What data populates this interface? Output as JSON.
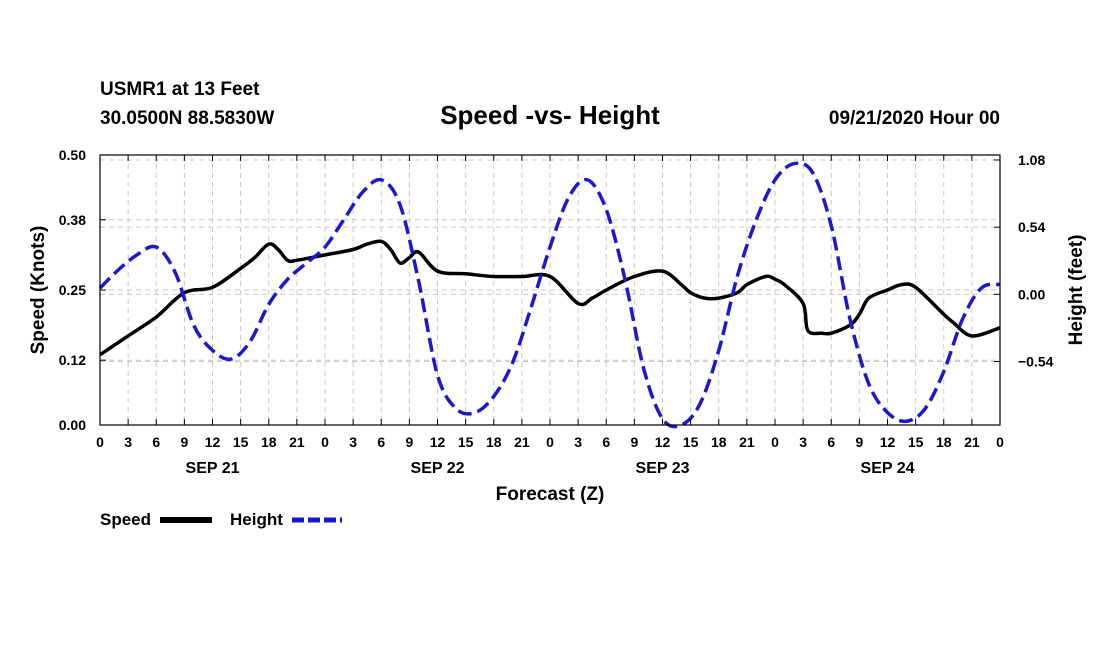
{
  "header": {
    "station": "USMR1 at 13 Feet",
    "location": "30.0500N 88.5830W",
    "title": "Speed -vs- Height",
    "issued": "09/21/2020 Hour 00"
  },
  "legend": {
    "speed_label": "Speed",
    "height_label": "Height"
  },
  "colors": {
    "speed": "#000000",
    "height": "#1a1acc"
  },
  "chart_data": {
    "type": "line",
    "title": "Speed -vs- Height",
    "xlabel": "Forecast (Z)",
    "ylabel": "Speed (Knots)",
    "y2label": "Height (feet)",
    "xlim": [
      0,
      96
    ],
    "ylim": [
      0,
      0.5
    ],
    "y2lim": [
      -1.05,
      1.12
    ],
    "x_ticks": [
      0,
      3,
      6,
      9,
      12,
      15,
      18,
      21,
      24,
      27,
      30,
      33,
      36,
      39,
      42,
      45,
      48,
      51,
      54,
      57,
      60,
      63,
      66,
      69,
      72,
      75,
      78,
      81,
      84,
      87,
      90,
      93,
      96
    ],
    "x_tick_labels": [
      "0",
      "3",
      "6",
      "9",
      "12",
      "15",
      "18",
      "21",
      "0",
      "3",
      "6",
      "9",
      "12",
      "15",
      "18",
      "21",
      "0",
      "3",
      "6",
      "9",
      "12",
      "15",
      "18",
      "21",
      "0",
      "3",
      "6",
      "9",
      "12",
      "15",
      "18",
      "21",
      "0"
    ],
    "y_ticks": [
      0.0,
      0.12,
      0.25,
      0.38,
      0.5
    ],
    "y_tick_labels": [
      "0.00",
      "0.12",
      "0.25",
      "0.38",
      "0.50"
    ],
    "y2_ticks": [
      1.08,
      0.54,
      0.0,
      -0.54
    ],
    "y2_tick_labels": [
      "1.08",
      "0.54",
      "0.00",
      "−0.54"
    ],
    "day_labels": [
      {
        "x": 12,
        "label": "SEP 21"
      },
      {
        "x": 36,
        "label": "SEP 22"
      },
      {
        "x": 60,
        "label": "SEP 23"
      },
      {
        "x": 84,
        "label": "SEP 24"
      }
    ],
    "grid": true,
    "series": [
      {
        "name": "Speed",
        "axis": "left",
        "style": "solid",
        "x": [
          0,
          3,
          6,
          9,
          12,
          15,
          16.5,
          18,
          19,
          20,
          21,
          24,
          27,
          28.5,
          30,
          31,
          32,
          33,
          34,
          36,
          39,
          42,
          45,
          48,
          51,
          52.5,
          54,
          57,
          60,
          62,
          63,
          64.5,
          66,
          68,
          69,
          71,
          72,
          73,
          75,
          75.5,
          77,
          78,
          80,
          81,
          82,
          84,
          85.5,
          87,
          90,
          91,
          93,
          96
        ],
        "y": [
          0.13,
          0.165,
          0.2,
          0.245,
          0.255,
          0.29,
          0.31,
          0.335,
          0.325,
          0.305,
          0.305,
          0.315,
          0.325,
          0.335,
          0.34,
          0.325,
          0.3,
          0.31,
          0.32,
          0.285,
          0.28,
          0.275,
          0.275,
          0.275,
          0.225,
          0.235,
          0.25,
          0.275,
          0.285,
          0.26,
          0.245,
          0.235,
          0.235,
          0.245,
          0.26,
          0.275,
          0.27,
          0.26,
          0.225,
          0.175,
          0.17,
          0.17,
          0.185,
          0.205,
          0.235,
          0.25,
          0.26,
          0.255,
          0.205,
          0.19,
          0.165,
          0.18
        ]
      },
      {
        "name": "Height",
        "axis": "right",
        "style": "dashed",
        "x": [
          0,
          2,
          4,
          6,
          8,
          10,
          12,
          14,
          16,
          18,
          20,
          22,
          24,
          26,
          28,
          30,
          32,
          34,
          36,
          38,
          40,
          42,
          44,
          46,
          48,
          50,
          52,
          54,
          56,
          58,
          60,
          62,
          64,
          66,
          68,
          70,
          72,
          74,
          76,
          78,
          80,
          82,
          84,
          86,
          88,
          90,
          92,
          94,
          96
        ],
        "y": [
          0.05,
          0.2,
          0.32,
          0.38,
          0.18,
          -0.25,
          -0.45,
          -0.52,
          -0.38,
          -0.08,
          0.12,
          0.25,
          0.38,
          0.6,
          0.82,
          0.92,
          0.72,
          0.1,
          -0.65,
          -0.92,
          -0.95,
          -0.82,
          -0.55,
          -0.1,
          0.38,
          0.78,
          0.92,
          0.68,
          0.12,
          -0.6,
          -1.0,
          -1.05,
          -0.88,
          -0.45,
          0.15,
          0.6,
          0.92,
          1.05,
          0.98,
          0.55,
          -0.2,
          -0.72,
          -0.95,
          -1.02,
          -0.92,
          -0.62,
          -0.2,
          0.05,
          0.08
        ]
      }
    ]
  }
}
